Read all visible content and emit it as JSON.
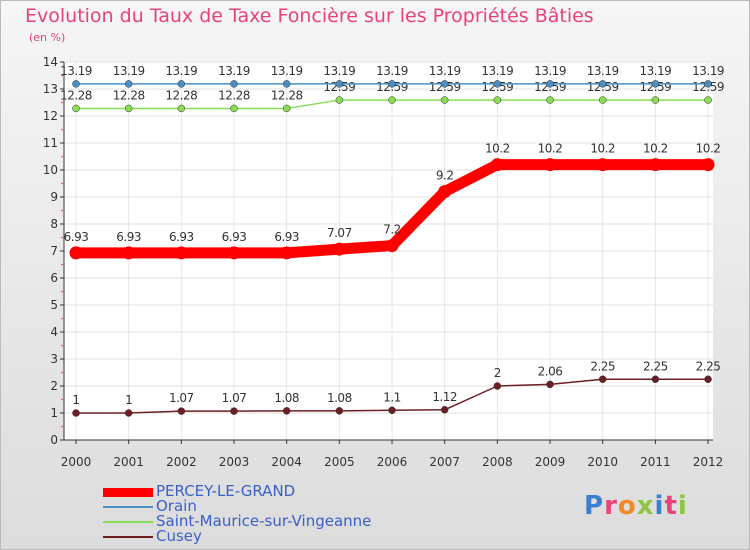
{
  "chart_data": {
    "type": "line",
    "title": "Evolution du Taux de Taxe Foncière sur les Propriétés Bâties",
    "ylabel": "(en %)",
    "xlabel": "",
    "ylim": [
      0,
      14
    ],
    "yticks": [
      "0",
      "1",
      "2",
      "3",
      "4",
      "5",
      "6",
      "7",
      "8",
      "9",
      "10",
      "11",
      "12",
      "13",
      "14"
    ],
    "categories": [
      "2000",
      "2001",
      "2002",
      "2003",
      "2004",
      "2005",
      "2006",
      "2007",
      "2008",
      "2009",
      "2010",
      "2011",
      "2012"
    ],
    "series": [
      {
        "name": "PERCEY-LE-GRAND",
        "color": "#ff0000",
        "values": [
          6.93,
          6.93,
          6.93,
          6.93,
          6.93,
          7.07,
          7.2,
          9.2,
          10.2,
          10.2,
          10.2,
          10.2,
          10.2
        ],
        "labels": [
          "6.93",
          "6.93",
          "6.93",
          "6.93",
          "6.93",
          "7.07",
          "7.2",
          "9.2",
          "10.2",
          "10.2",
          "10.2",
          "10.2",
          "10.2"
        ]
      },
      {
        "name": "Orain",
        "color": "#4a8fc4",
        "values": [
          13.19,
          13.19,
          13.19,
          13.19,
          13.19,
          13.19,
          13.19,
          13.19,
          13.19,
          13.19,
          13.19,
          13.19,
          13.19
        ],
        "labels": [
          "13.19",
          "13.19",
          "13.19",
          "13.19",
          "13.19",
          "13.19",
          "13.19",
          "13.19",
          "13.19",
          "13.19",
          "13.19",
          "13.19",
          "13.19"
        ]
      },
      {
        "name": "Saint-Maurice-sur-Vingeanne",
        "color": "#88dd55",
        "values": [
          12.28,
          12.28,
          12.28,
          12.28,
          12.28,
          12.59,
          12.59,
          12.59,
          12.59,
          12.59,
          12.59,
          12.59,
          12.59
        ],
        "labels": [
          "12.28",
          "12.28",
          "12.28",
          "12.28",
          "12.28",
          "12.59",
          "12.59",
          "12.59",
          "12.59",
          "12.59",
          "12.59",
          "12.59",
          "12.59"
        ]
      },
      {
        "name": "Cusey",
        "color": "#6b1f25",
        "values": [
          1,
          1,
          1.07,
          1.07,
          1.08,
          1.08,
          1.1,
          1.12,
          2,
          2.06,
          2.25,
          2.25,
          2.25
        ],
        "labels": [
          "1",
          "1",
          "1.07",
          "1.07",
          "1.08",
          "1.08",
          "1.1",
          "1.12",
          "2",
          "2.06",
          "2.25",
          "2.25",
          "2.25"
        ]
      }
    ]
  },
  "logo": {
    "text": "Proxiti"
  }
}
